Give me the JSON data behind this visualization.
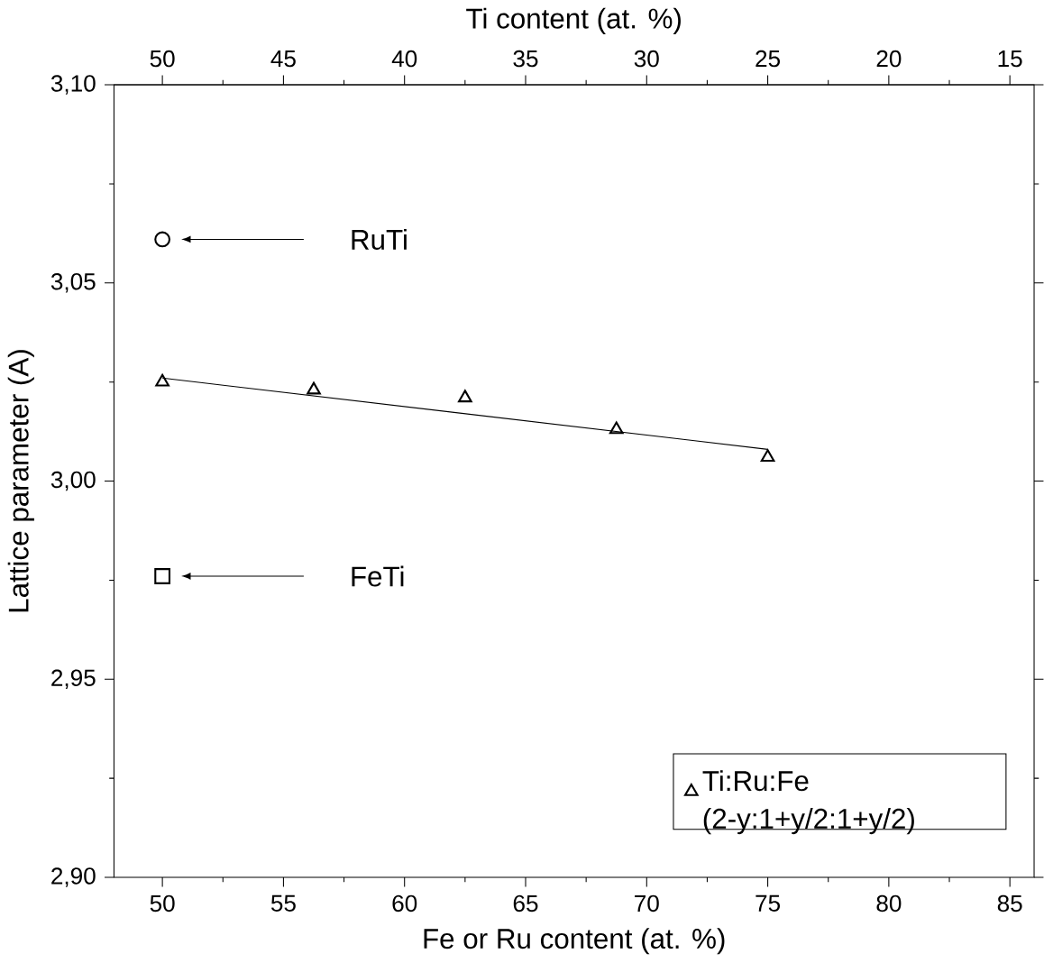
{
  "chart_data": {
    "type": "scatter",
    "xlabel": "Fe or Ru content (at. %)",
    "ylabel": "Lattice parameter (A)",
    "x2label": "Ti content (at. %)",
    "xlim": [
      48,
      86
    ],
    "xticks": [
      50,
      55,
      60,
      65,
      70,
      75,
      80,
      85
    ],
    "x2lim": [
      52,
      14
    ],
    "x2ticks": [
      50,
      45,
      40,
      35,
      30,
      25,
      20,
      15
    ],
    "ylim": [
      2.9,
      3.1
    ],
    "yticks": [
      {
        "value": 2.9,
        "label": "2,90"
      },
      {
        "value": 2.95,
        "label": "2,95"
      },
      {
        "value": 3.0,
        "label": "3,00"
      },
      {
        "value": 3.05,
        "label": "3,05"
      },
      {
        "value": 3.1,
        "label": "3,10"
      }
    ],
    "series": [
      {
        "color": "#000000",
        "marker": "circle",
        "x": [
          50
        ],
        "values": [
          3.061
        ]
      },
      {
        "color": "#000000",
        "marker": "square",
        "x": [
          50
        ],
        "values": [
          2.976
        ]
      },
      {
        "name": "Ti:Ru:Fe (2-y:1+y/2:1+y/2)",
        "color": "#000000",
        "marker": "triangle",
        "x": [
          50,
          56.25,
          62.5,
          68.75,
          75
        ],
        "values": [
          3.025,
          3.023,
          3.021,
          3.013,
          3.006
        ]
      },
      {
        "type": "line",
        "color": "#000000",
        "marker": "none",
        "line_style": "solid",
        "x": [
          50,
          75
        ],
        "values": [
          3.026,
          3.008
        ]
      }
    ],
    "annotations": [
      "RuTi",
      "FeTi"
    ],
    "legend": "bottom right",
    "grid": false
  }
}
